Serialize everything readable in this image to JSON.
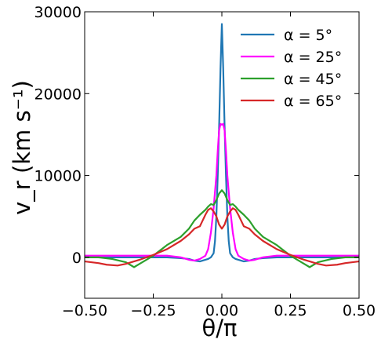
{
  "chart_data": {
    "type": "line",
    "title": "",
    "xlabel": "θ/π",
    "ylabel": "v_r (km s⁻¹)",
    "xlim": [
      -0.5,
      0.5
    ],
    "ylim": [
      -5000,
      30000
    ],
    "xticks": [
      -0.5,
      -0.25,
      0.0,
      0.25,
      0.5
    ],
    "xtick_labels": [
      "−0.50",
      "−0.25",
      "0.00",
      "0.25",
      "0.50"
    ],
    "yticks": [
      0,
      10000,
      20000,
      30000
    ],
    "ytick_labels": [
      "0",
      "10000",
      "20000",
      "30000"
    ],
    "grid": false,
    "legend_position": "top-right",
    "series": [
      {
        "name": "α = 5°",
        "color": "#1f77b4",
        "x": [
          -0.5,
          -0.2,
          -0.15,
          -0.12,
          -0.1,
          -0.08,
          -0.06,
          -0.05,
          -0.04,
          -0.03,
          -0.025,
          -0.02,
          -0.015,
          -0.01,
          -0.005,
          0.0,
          0.005,
          0.01,
          0.015,
          0.02,
          0.025,
          0.03,
          0.04,
          0.05,
          0.06,
          0.08,
          0.1,
          0.12,
          0.15,
          0.2,
          0.5
        ],
        "y": [
          0,
          0,
          -100,
          -200,
          -400,
          -500,
          -300,
          -200,
          0,
          500,
          2000,
          5000,
          10000,
          16000,
          23000,
          28500,
          23000,
          16000,
          10000,
          5000,
          2000,
          500,
          0,
          -200,
          -300,
          -500,
          -400,
          -200,
          -100,
          0,
          0
        ]
      },
      {
        "name": "α = 25°",
        "color": "#ff00ff",
        "x": [
          -0.5,
          -0.3,
          -0.2,
          -0.15,
          -0.12,
          -0.1,
          -0.08,
          -0.06,
          -0.05,
          -0.04,
          -0.03,
          -0.02,
          -0.015,
          -0.01,
          -0.005,
          0.0,
          0.005,
          0.01,
          0.015,
          0.02,
          0.03,
          0.04,
          0.05,
          0.06,
          0.08,
          0.1,
          0.12,
          0.15,
          0.2,
          0.3,
          0.5
        ],
        "y": [
          200,
          200,
          200,
          0,
          -300,
          -400,
          -200,
          200,
          1000,
          3000,
          6000,
          10000,
          13000,
          15500,
          16300,
          16200,
          16300,
          15500,
          13000,
          10000,
          6000,
          3000,
          1000,
          200,
          -200,
          -400,
          -300,
          0,
          200,
          200,
          200
        ]
      },
      {
        "name": "α = 45°",
        "color": "#2ca02c",
        "x": [
          -0.5,
          -0.45,
          -0.4,
          -0.35,
          -0.32,
          -0.3,
          -0.25,
          -0.2,
          -0.15,
          -0.12,
          -0.1,
          -0.08,
          -0.06,
          -0.05,
          -0.04,
          -0.03,
          -0.02,
          -0.01,
          0.0,
          0.01,
          0.02,
          0.03,
          0.04,
          0.05,
          0.06,
          0.08,
          0.1,
          0.12,
          0.15,
          0.2,
          0.25,
          0.3,
          0.32,
          0.35,
          0.4,
          0.45,
          0.5
        ],
        "y": [
          0,
          0,
          -200,
          -600,
          -1200,
          -800,
          200,
          1500,
          2500,
          3500,
          4500,
          5200,
          5800,
          6200,
          6500,
          6400,
          7000,
          7800,
          8200,
          7800,
          7000,
          6400,
          6500,
          6200,
          5800,
          5200,
          4500,
          3500,
          2500,
          1500,
          200,
          -800,
          -1200,
          -600,
          -200,
          0,
          0
        ]
      },
      {
        "name": "α = 65°",
        "color": "#d62728",
        "x": [
          -0.5,
          -0.45,
          -0.42,
          -0.38,
          -0.35,
          -0.3,
          -0.25,
          -0.2,
          -0.15,
          -0.12,
          -0.1,
          -0.08,
          -0.07,
          -0.06,
          -0.05,
          -0.04,
          -0.03,
          -0.02,
          -0.01,
          0.0,
          0.01,
          0.02,
          0.03,
          0.04,
          0.05,
          0.06,
          0.07,
          0.08,
          0.1,
          0.12,
          0.15,
          0.2,
          0.25,
          0.3,
          0.35,
          0.38,
          0.42,
          0.45,
          0.5
        ],
        "y": [
          -500,
          -700,
          -900,
          -1000,
          -800,
          -300,
          300,
          1000,
          2000,
          2800,
          3500,
          3800,
          4500,
          5200,
          5800,
          6000,
          5600,
          5000,
          4000,
          3500,
          4000,
          5000,
          5600,
          6000,
          5800,
          5200,
          4500,
          3800,
          3500,
          2800,
          2000,
          1000,
          300,
          -300,
          -800,
          -1000,
          -900,
          -700,
          -500
        ]
      }
    ]
  }
}
